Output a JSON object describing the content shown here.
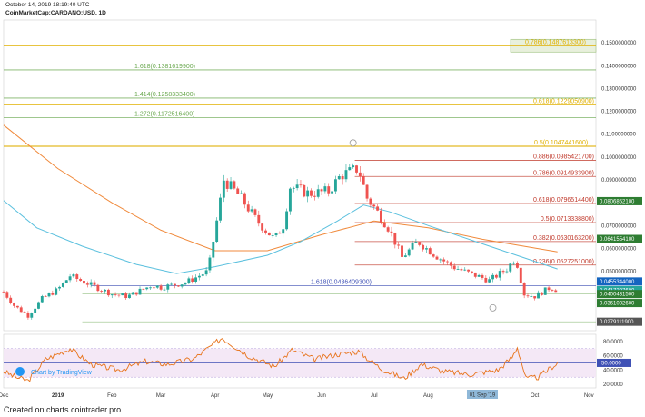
{
  "header": {
    "timestamp": "October 14, 2019 18:19:40 UTC",
    "symbol": "CoinMarketCap:CARDANO:USD, 1D"
  },
  "footer": "Created on charts.cointrader.pro",
  "watermark": "Chart by TradingView",
  "colors": {
    "up": "#26a69a",
    "down": "#ef5350",
    "fib_green": "#6aa84f",
    "fib_gold": "#e0b000",
    "fib_red": "#c0392b",
    "ma_orange": "#f08a3c",
    "ma_cyan": "#5bc0de",
    "rsi": "#e8731a",
    "rsi_band": "#f3e5f5",
    "rsi_mid": "#3f51b5"
  },
  "chart_data": {
    "type": "candlestick",
    "y_axis": {
      "range": [
        0.024,
        0.16
      ],
      "ticks": [
        "0.1500000000",
        "0.1400000000",
        "0.1300000000",
        "0.1200000000",
        "0.1100000000",
        "0.1000000000",
        "0.0900000000",
        "0.0700000000",
        "0.0600000000",
        "0.0500000000"
      ],
      "tick_values": [
        0.15,
        0.14,
        0.13,
        0.12,
        0.11,
        0.1,
        0.09,
        0.07,
        0.06,
        0.05
      ]
    },
    "x_axis": {
      "range": [
        "2018-12-01",
        "2019-11-05"
      ],
      "labels": [
        "Dec",
        "2019",
        "Feb",
        "Mar",
        "Apr",
        "May",
        "Jun",
        "Jul",
        "Aug",
        "Oct",
        "Nov"
      ],
      "label_dates": [
        "2018-12-01",
        "2019-01-01",
        "2019-02-01",
        "2019-03-01",
        "2019-04-01",
        "2019-05-01",
        "2019-06-01",
        "2019-07-01",
        "2019-08-01",
        "2019-10-01",
        "2019-11-01"
      ],
      "cursor_label": "01 Sep '19",
      "cursor_date": "2019-09-01"
    },
    "ohlc_anchors": [
      {
        "date": "2018-12-01",
        "close": 0.041
      },
      {
        "date": "2018-12-07",
        "close": 0.035
      },
      {
        "date": "2018-12-15",
        "close": 0.0305
      },
      {
        "date": "2018-12-23",
        "close": 0.038
      },
      {
        "date": "2019-01-01",
        "close": 0.042
      },
      {
        "date": "2019-01-08",
        "close": 0.048
      },
      {
        "date": "2019-01-20",
        "close": 0.044
      },
      {
        "date": "2019-02-01",
        "close": 0.04
      },
      {
        "date": "2019-02-10",
        "close": 0.039
      },
      {
        "date": "2019-02-24",
        "close": 0.044
      },
      {
        "date": "2019-03-01",
        "close": 0.043
      },
      {
        "date": "2019-03-15",
        "close": 0.045
      },
      {
        "date": "2019-03-28",
        "close": 0.05
      },
      {
        "date": "2019-04-02",
        "close": 0.072
      },
      {
        "date": "2019-04-06",
        "close": 0.09
      },
      {
        "date": "2019-04-15",
        "close": 0.083
      },
      {
        "date": "2019-04-25",
        "close": 0.072
      },
      {
        "date": "2019-05-05",
        "close": 0.064
      },
      {
        "date": "2019-05-10",
        "close": 0.07
      },
      {
        "date": "2019-05-14",
        "close": 0.087
      },
      {
        "date": "2019-05-25",
        "close": 0.084
      },
      {
        "date": "2019-06-05",
        "close": 0.085
      },
      {
        "date": "2019-06-12",
        "close": 0.092
      },
      {
        "date": "2019-06-22",
        "close": 0.095
      },
      {
        "date": "2019-06-27",
        "close": 0.082
      },
      {
        "date": "2019-07-02",
        "close": 0.077
      },
      {
        "date": "2019-07-10",
        "close": 0.068
      },
      {
        "date": "2019-07-17",
        "close": 0.056
      },
      {
        "date": "2019-07-26",
        "close": 0.063
      },
      {
        "date": "2019-08-05",
        "close": 0.057
      },
      {
        "date": "2019-08-15",
        "close": 0.052
      },
      {
        "date": "2019-08-25",
        "close": 0.049
      },
      {
        "date": "2019-09-05",
        "close": 0.046
      },
      {
        "date": "2019-09-15",
        "close": 0.051
      },
      {
        "date": "2019-09-20",
        "close": 0.056
      },
      {
        "date": "2019-09-25",
        "close": 0.04
      },
      {
        "date": "2019-10-01",
        "close": 0.039
      },
      {
        "date": "2019-10-10",
        "close": 0.043
      },
      {
        "date": "2019-10-14",
        "close": 0.0417
      }
    ],
    "moving_averages": [
      {
        "color": "orange",
        "points": [
          [
            "2018-12-01",
            0.114
          ],
          [
            "2019-01-01",
            0.095
          ],
          [
            "2019-02-01",
            0.08
          ],
          [
            "2019-03-01",
            0.068
          ],
          [
            "2019-04-01",
            0.059
          ],
          [
            "2019-05-01",
            0.059
          ],
          [
            "2019-06-01",
            0.066
          ],
          [
            "2019-07-01",
            0.072
          ],
          [
            "2019-08-01",
            0.069
          ],
          [
            "2019-09-01",
            0.064
          ],
          [
            "2019-10-14",
            0.0585
          ]
        ]
      },
      {
        "color": "cyan",
        "points": [
          [
            "2018-12-01",
            0.081
          ],
          [
            "2018-12-20",
            0.069
          ],
          [
            "2019-01-15",
            0.061
          ],
          [
            "2019-02-15",
            0.053
          ],
          [
            "2019-03-10",
            0.049
          ],
          [
            "2019-04-01",
            0.052
          ],
          [
            "2019-05-01",
            0.057
          ],
          [
            "2019-05-20",
            0.063
          ],
          [
            "2019-06-10",
            0.072
          ],
          [
            "2019-06-25",
            0.079
          ],
          [
            "2019-07-10",
            0.076
          ],
          [
            "2019-08-01",
            0.07
          ],
          [
            "2019-09-01",
            0.062
          ],
          [
            "2019-10-14",
            0.051
          ]
        ]
      }
    ],
    "fib_levels": [
      {
        "label": "0.786(0.1487613300)",
        "value": 0.14876,
        "color": "gold",
        "label_pos": "right-box"
      },
      {
        "label": "1.618(0.1381619900)",
        "value": 0.13816,
        "color": "green",
        "label_pos": "left"
      },
      {
        "label": "1.414(0.1258333400)",
        "value": 0.12583,
        "color": "green",
        "label_pos": "left"
      },
      {
        "label": "0.618(0.1229050900)",
        "value": 0.12291,
        "color": "gold",
        "label_pos": "right"
      },
      {
        "label": "1.272(0.1172516400)",
        "value": 0.11725,
        "color": "green",
        "label_pos": "left"
      },
      {
        "label": "0.5(0.1047441600)",
        "value": 0.10474,
        "color": "gold",
        "label_pos": "mid"
      },
      {
        "label": "0.886(0.0985421700)",
        "value": 0.09854,
        "color": "red",
        "label_pos": "right"
      },
      {
        "label": "0.786(0.0914933900)",
        "value": 0.09149,
        "color": "red",
        "label_pos": "right"
      },
      {
        "label": "0.618(0.0796514400)",
        "value": 0.07965,
        "color": "red",
        "label_pos": "right"
      },
      {
        "label": "0.5(0.0713338800)",
        "value": 0.07133,
        "color": "red",
        "label_pos": "right"
      },
      {
        "label": "0.382(0.0630163200)",
        "value": 0.06302,
        "color": "red",
        "label_pos": "right"
      },
      {
        "label": "0.236(0.0527251000)",
        "value": 0.05273,
        "color": "red",
        "label_pos": "right"
      },
      {
        "label": "1.618(0.0436409300)",
        "value": 0.04364,
        "color": "blue",
        "label_pos": "mid"
      }
    ],
    "price_tags": [
      {
        "label": "0.0806852100",
        "value": 0.08069,
        "bg": "#2e7d32"
      },
      {
        "label": "0.0641554100",
        "value": 0.06416,
        "bg": "#2e7d32"
      },
      {
        "label": "0.0455344000",
        "value": 0.04553,
        "bg": "#1565c0"
      },
      {
        "label": "0.0417207600",
        "value": 0.04172,
        "bg": "#26a69a"
      },
      {
        "label": "0.0400431500",
        "value": 0.04004,
        "bg": "#2e7d32"
      },
      {
        "label": "0.0361002600",
        "value": 0.0361,
        "bg": "#2e7d32"
      },
      {
        "label": "0.0279111900",
        "value": 0.02791,
        "bg": "#555555"
      }
    ],
    "support_lines": [
      0.04004,
      0.0361,
      0.02791
    ],
    "rsi": {
      "range": [
        15,
        90
      ],
      "ticks": [
        "80.0000",
        "60.0000",
        "40.0000",
        "20.0000"
      ],
      "tick_values": [
        80,
        60,
        40,
        20
      ],
      "current_label": "50.0000",
      "current_value": 50,
      "band": [
        30,
        70
      ],
      "anchors": [
        {
          "date": "2018-12-01",
          "v": 38
        },
        {
          "date": "2018-12-08",
          "v": 30
        },
        {
          "date": "2018-12-15",
          "v": 25
        },
        {
          "date": "2018-12-25",
          "v": 55
        },
        {
          "date": "2019-01-08",
          "v": 70
        },
        {
          "date": "2019-01-20",
          "v": 48
        },
        {
          "date": "2019-02-05",
          "v": 40
        },
        {
          "date": "2019-02-20",
          "v": 52
        },
        {
          "date": "2019-03-05",
          "v": 48
        },
        {
          "date": "2019-03-20",
          "v": 56
        },
        {
          "date": "2019-04-05",
          "v": 85
        },
        {
          "date": "2019-04-20",
          "v": 60
        },
        {
          "date": "2019-05-05",
          "v": 45
        },
        {
          "date": "2019-05-15",
          "v": 68
        },
        {
          "date": "2019-05-28",
          "v": 55
        },
        {
          "date": "2019-06-10",
          "v": 62
        },
        {
          "date": "2019-06-22",
          "v": 66
        },
        {
          "date": "2019-07-05",
          "v": 42
        },
        {
          "date": "2019-07-18",
          "v": 28
        },
        {
          "date": "2019-07-28",
          "v": 48
        },
        {
          "date": "2019-08-10",
          "v": 38
        },
        {
          "date": "2019-08-25",
          "v": 34
        },
        {
          "date": "2019-09-10",
          "v": 40
        },
        {
          "date": "2019-09-18",
          "v": 58
        },
        {
          "date": "2019-09-21",
          "v": 72
        },
        {
          "date": "2019-09-26",
          "v": 28
        },
        {
          "date": "2019-10-03",
          "v": 30
        },
        {
          "date": "2019-10-14",
          "v": 50
        }
      ]
    },
    "annotation_circles": [
      {
        "date": "2019-06-19",
        "value": 0.1062
      },
      {
        "date": "2019-09-07",
        "value": 0.034
      }
    ]
  }
}
